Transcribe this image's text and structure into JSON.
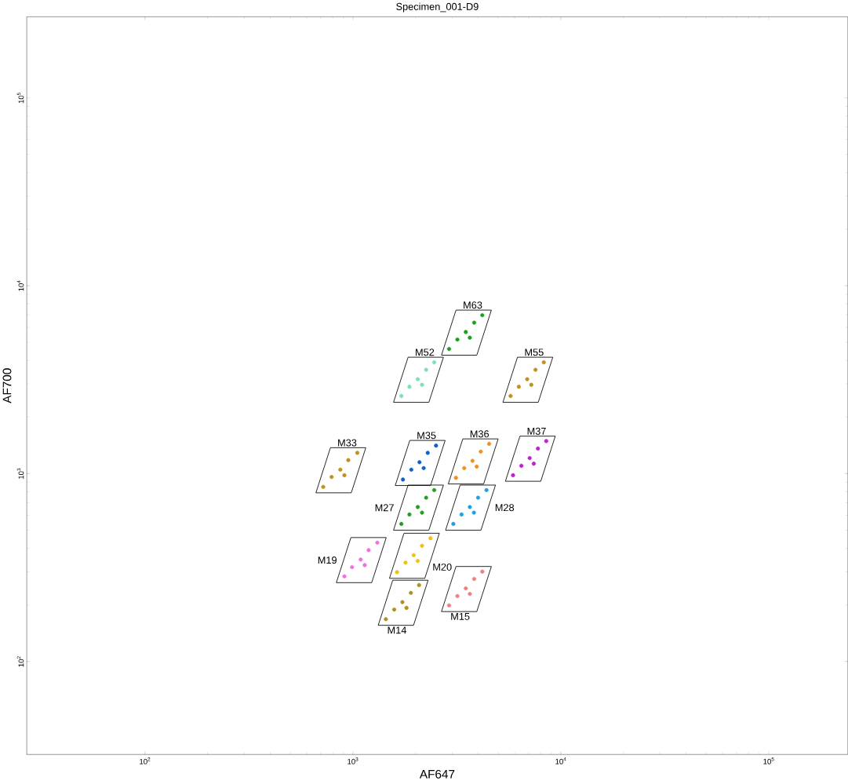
{
  "chart_data": {
    "type": "scatter",
    "title": "Specimen_001-D9",
    "xlabel": "AF647",
    "ylabel": "AF700",
    "log": "xy",
    "xlim": [
      27,
      240000
    ],
    "ylim": [
      32,
      270000
    ],
    "xticks": [
      {
        "value": 100,
        "label": "10$^{2}$"
      },
      {
        "value": 1000,
        "label": "10$^{3}$"
      },
      {
        "value": 10000,
        "label": "10$^{4}$"
      },
      {
        "value": 100000,
        "label": "10$^{5}$"
      }
    ],
    "yticks": [
      {
        "value": 100,
        "label": "10$^{2}$"
      },
      {
        "value": 1000,
        "label": "10$^{3}$"
      },
      {
        "value": 10000,
        "label": "10$^{4}$"
      },
      {
        "value": 100000,
        "label": "10$^{5}$"
      }
    ],
    "grid": false,
    "legend": false,
    "marker": "circle",
    "series": [
      {
        "name": "M63",
        "color": "#1aa01a",
        "x": [
          2900,
          3180,
          3490,
          3830,
          4190,
          3650
        ],
        "values": [
          4610,
          5170,
          5670,
          6360,
          6970,
          5290
        ]
      },
      {
        "name": "M52",
        "color": "#7fe0b0",
        "x": [
          1710,
          1870,
          2050,
          2250,
          2460,
          2150
        ],
        "values": [
          2590,
          2900,
          3180,
          3570,
          3910,
          2970
        ]
      },
      {
        "name": "M55",
        "color": "#c09020",
        "x": [
          5730,
          6280,
          6890,
          7550,
          8280,
          7210
        ],
        "values": [
          2590,
          2900,
          3180,
          3570,
          3910,
          2970
        ]
      },
      {
        "name": "M33",
        "color": "#c09020",
        "x": [
          720,
          790,
          870,
          950,
          1050,
          910
        ],
        "values": [
          850,
          960,
          1050,
          1180,
          1290,
          980
        ]
      },
      {
        "name": "M35",
        "color": "#1060d0",
        "x": [
          1740,
          1910,
          2090,
          2290,
          2510,
          2190
        ],
        "values": [
          930,
          1050,
          1150,
          1290,
          1410,
          1070
        ]
      },
      {
        "name": "M36",
        "color": "#f09020",
        "x": [
          3130,
          3430,
          3760,
          4120,
          4520,
          3940
        ],
        "values": [
          950,
          1070,
          1170,
          1310,
          1440,
          1090
        ]
      },
      {
        "name": "M37",
        "color": "#c020d0",
        "x": [
          5890,
          6460,
          7080,
          7760,
          8510,
          7410
        ],
        "values": [
          980,
          1100,
          1210,
          1360,
          1490,
          1130
        ]
      },
      {
        "name": "M27",
        "color": "#20a020",
        "x": [
          1710,
          1870,
          2050,
          2250,
          2460,
          2150
        ],
        "values": [
          540,
          606,
          664,
          745,
          817,
          620
        ]
      },
      {
        "name": "M28",
        "color": "#20a0e0",
        "x": [
          3040,
          3330,
          3650,
          4000,
          4390,
          3820
        ],
        "values": [
          540,
          606,
          664,
          745,
          817,
          620
        ]
      },
      {
        "name": "M19",
        "color": "#f070e0",
        "x": [
          910,
          990,
          1090,
          1190,
          1310,
          1140
        ],
        "values": [
          284,
          318,
          349,
          392,
          429,
          326
        ]
      },
      {
        "name": "M20",
        "color": "#f0c010",
        "x": [
          1630,
          1790,
          1960,
          2150,
          2360,
          2050
        ],
        "values": [
          299,
          336,
          368,
          413,
          453,
          343
        ]
      },
      {
        "name": "M14",
        "color": "#b09020",
        "x": [
          1440,
          1580,
          1730,
          1900,
          2080,
          1810
        ],
        "values": [
          168,
          189,
          207,
          232,
          255,
          193
        ]
      },
      {
        "name": "M15",
        "color": "#f08080",
        "x": [
          2900,
          3180,
          3490,
          3830,
          4190,
          3650
        ],
        "values": [
          199,
          223,
          245,
          275,
          301,
          229
        ]
      }
    ]
  }
}
